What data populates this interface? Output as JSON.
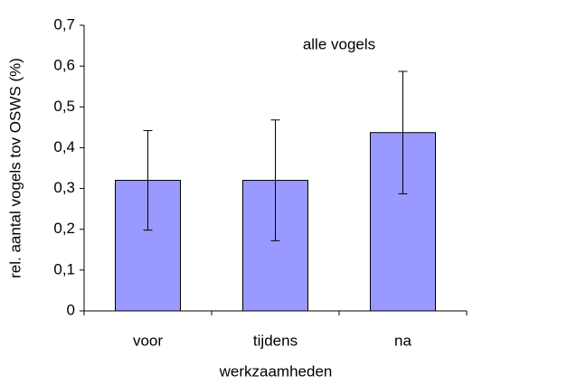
{
  "chart_data": {
    "type": "bar",
    "title": "alle vogels",
    "x_label": "werkzaamheden",
    "y_label": "rel. aantal vogels tov OSWS (%)",
    "categories": [
      "voor",
      "tijdens",
      "na"
    ],
    "values": [
      0.32,
      0.32,
      0.437
    ],
    "errors": [
      0.122,
      0.148,
      0.15
    ],
    "color": "#9999ff",
    "ylim": [
      0,
      0.7
    ],
    "yticks": [
      0,
      {
        "value": 0.1,
        "label": "0,1"
      },
      {
        "value": 0.2,
        "label": "0,2"
      },
      {
        "value": 0.3,
        "label": "0,3"
      },
      {
        "value": 0.4,
        "label": "0,4"
      },
      {
        "value": 0.5,
        "label": "0,5"
      },
      {
        "value": 0.6,
        "label": "0,6"
      },
      {
        "value": 0.7,
        "label": "0,7"
      }
    ],
    "grid": false
  }
}
